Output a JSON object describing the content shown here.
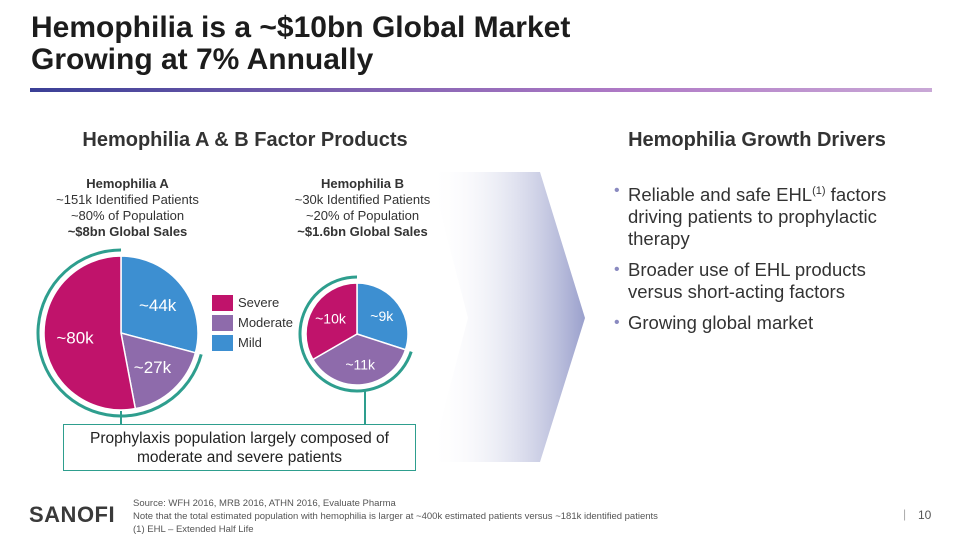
{
  "title": {
    "line1": "Hemophilia is a ~$10bn Global Market",
    "line2": "Growing at 7% Annually"
  },
  "left_heading": "Hemophilia A & B Factor Products",
  "right_heading": "Hemophilia Growth Drivers",
  "hemophilia_a": {
    "name": "Hemophilia A",
    "patients": "~151k Identified Patients",
    "population": "~80% of Population",
    "sales": "~$8bn Global Sales",
    "slices": [
      {
        "label": "~44k",
        "value": 44,
        "category": "Mild"
      },
      {
        "label": "~27k",
        "value": 27,
        "category": "Moderate"
      },
      {
        "label": "~80k",
        "value": 80,
        "category": "Severe"
      }
    ]
  },
  "hemophilia_b": {
    "name": "Hemophilia B",
    "patients": "~30k Identified Patients",
    "population": "~20% of Population",
    "sales": "~$1.6bn Global Sales",
    "slices": [
      {
        "label": "~9k",
        "value": 9,
        "category": "Mild"
      },
      {
        "label": "~11k",
        "value": 11,
        "category": "Moderate"
      },
      {
        "label": "~10k",
        "value": 10,
        "category": "Severe"
      }
    ]
  },
  "legend": [
    {
      "label": "Severe",
      "color": "#c0136b"
    },
    {
      "label": "Moderate",
      "color": "#8e6bab"
    },
    {
      "label": "Mild",
      "color": "#3d8fd1"
    }
  ],
  "colors": {
    "Severe": "#c0136b",
    "Moderate": "#8e6bab",
    "Mild": "#3d8fd1",
    "ring": "#2e9e8e"
  },
  "bullets": [
    {
      "pre": "Reliable and safe EHL",
      "sup": "(1)",
      "post": " factors driving patients to prophylactic therapy"
    },
    {
      "pre": "Broader use of EHL products versus short-acting factors",
      "sup": "",
      "post": ""
    },
    {
      "pre": "Growing global market",
      "sup": "",
      "post": ""
    }
  ],
  "callout": {
    "line1": "Prophylaxis population largely composed of",
    "line2": "moderate and severe patients"
  },
  "footer": {
    "logo": "SANOFI",
    "source": "Source: WFH 2016, MRB 2016, ATHN 2016, Evaluate Pharma",
    "note": "Note that the total estimated population with hemophilia is larger at ~400k estimated patients versus ~181k identified patients",
    "footnote": "(1)   EHL – Extended Half Life",
    "page": "10"
  }
}
